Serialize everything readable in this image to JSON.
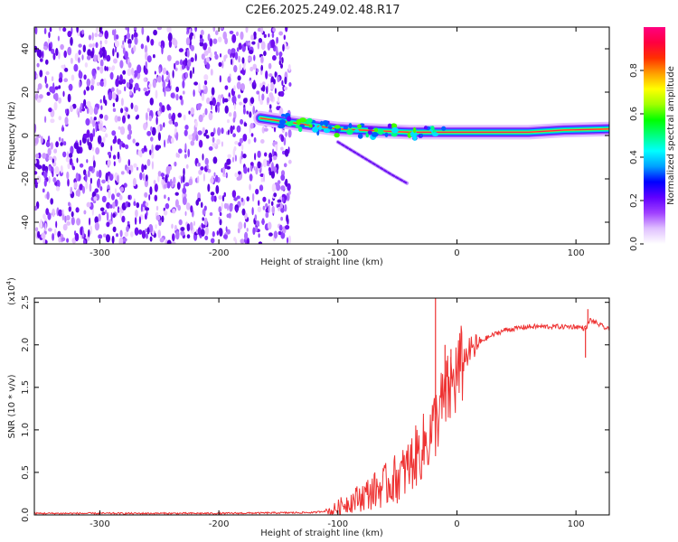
{
  "title": "C2E6.2025.249.02.48.R17",
  "chart_data": [
    {
      "type": "heatmap",
      "panel": "spectrogram",
      "xlabel": "Height of straight line (km)",
      "ylabel": "Frequency (Hz)",
      "xlim": [
        -355,
        128
      ],
      "ylim": [
        -50,
        50
      ],
      "xticks": [
        -300,
        -200,
        -100,
        0,
        100
      ],
      "yticks": [
        -40,
        -20,
        0,
        20,
        40
      ],
      "noise_region_x": [
        -355,
        -140
      ],
      "main_trace": [
        {
          "x": -165,
          "y": 8
        },
        {
          "x": -140,
          "y": 6
        },
        {
          "x": -120,
          "y": 4.5
        },
        {
          "x": -100,
          "y": 3
        },
        {
          "x": -80,
          "y": 2.5
        },
        {
          "x": -60,
          "y": 2
        },
        {
          "x": -40,
          "y": 1.5
        },
        {
          "x": -20,
          "y": 1.5
        },
        {
          "x": 0,
          "y": 1.5
        },
        {
          "x": 30,
          "y": 1.5
        },
        {
          "x": 60,
          "y": 1.5
        },
        {
          "x": 90,
          "y": 2.5
        },
        {
          "x": 128,
          "y": 3
        }
      ],
      "secondary_branch": [
        {
          "x": -100,
          "y": -3
        },
        {
          "x": -85,
          "y": -8
        },
        {
          "x": -70,
          "y": -13
        },
        {
          "x": -55,
          "y": -18
        },
        {
          "x": -42,
          "y": -22
        }
      ],
      "colorbar": {
        "label": "Normalized spectral amplitude",
        "ticks": [
          0.0,
          0.2,
          0.4,
          0.6,
          0.8
        ],
        "tick_labels": [
          "0.0",
          "0.2",
          "0.4",
          "0.6",
          "0.8"
        ],
        "colors": [
          "#ffffff",
          "#e0c0ff",
          "#a040ff",
          "#6000ff",
          "#0000ff",
          "#00a0ff",
          "#00ffff",
          "#00ff80",
          "#00ff00",
          "#a0ff00",
          "#ffff00",
          "#ffa000",
          "#ff3000",
          "#ff0040",
          "#ff0080"
        ]
      }
    },
    {
      "type": "line",
      "panel": "snr",
      "xlabel": "Height of straight line (km)",
      "ylabel": "SNR (10 * v/v)",
      "multiplier_label": "(x10",
      "multiplier_exp": "4",
      "multiplier_close": ")",
      "xlim": [
        -355,
        128
      ],
      "ylim": [
        0,
        2.55
      ],
      "xticks": [
        -300,
        -200,
        -100,
        0,
        100
      ],
      "yticks": [
        0.0,
        0.5,
        1.0,
        1.5,
        2.0,
        2.5
      ],
      "ytick_labels": [
        "0.0",
        "0.5",
        "1.0",
        "1.5",
        "2.0",
        "2.5"
      ],
      "color": "#ee3333",
      "x": [
        -355,
        -200,
        -120,
        -105,
        -95,
        -80,
        -60,
        -45,
        -35,
        -25,
        -20,
        -15,
        -10,
        -5,
        0,
        10,
        20,
        30,
        40,
        60,
        80,
        100,
        108,
        112,
        128
      ],
      "y": [
        0.02,
        0.02,
        0.03,
        0.06,
        0.15,
        0.25,
        0.4,
        0.55,
        0.75,
        0.95,
        1.1,
        1.3,
        1.45,
        1.6,
        1.75,
        1.95,
        2.05,
        2.12,
        2.18,
        2.22,
        2.22,
        2.22,
        2.2,
        2.3,
        2.18
      ],
      "spikes": [
        {
          "x": -18,
          "y": 2.55
        },
        {
          "x": -10,
          "y": 2.0
        },
        {
          "x": -5,
          "y": 1.95
        },
        {
          "x": 108,
          "y": 1.85
        },
        {
          "x": 110,
          "y": 2.42
        }
      ]
    }
  ]
}
